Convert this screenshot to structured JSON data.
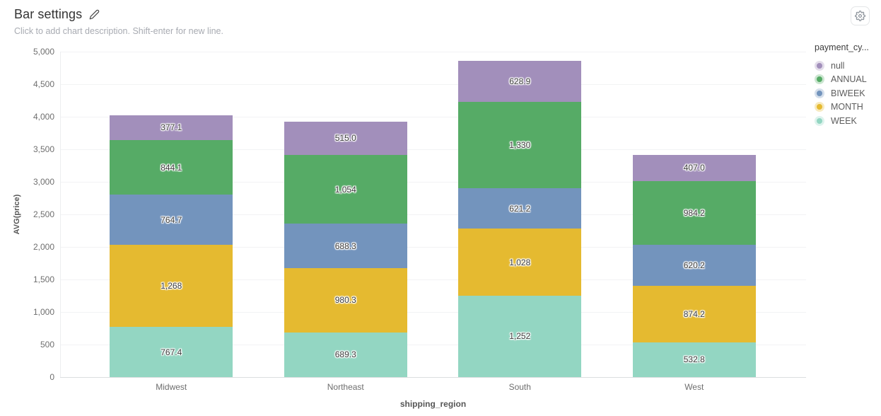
{
  "header": {
    "title": "Bar settings",
    "description": "Click to add chart description. Shift-enter for new line."
  },
  "icons": {
    "edit": "pencil-icon",
    "settings": "gear-icon"
  },
  "chart_data": {
    "type": "bar",
    "stacked": true,
    "xlabel": "shipping_region",
    "ylabel": "AVG(price)",
    "categories": [
      "Midwest",
      "Northeast",
      "South",
      "West"
    ],
    "series": [
      {
        "name": "WEEK",
        "color": "#93d6c2",
        "values": [
          767.4,
          689.3,
          1252,
          532.8
        ],
        "labels": [
          "767.4",
          "689.3",
          "1,252",
          "532.8"
        ]
      },
      {
        "name": "MONTH",
        "color": "#e5ba30",
        "values": [
          1268,
          980.3,
          1028,
          874.2
        ],
        "labels": [
          "1,268",
          "980.3",
          "1,028",
          "874.2"
        ]
      },
      {
        "name": "BIWEEK",
        "color": "#7394bd",
        "values": [
          764.7,
          688.3,
          621.2,
          620.2
        ],
        "labels": [
          "764.7",
          "688.3",
          "621.2",
          "620.2"
        ]
      },
      {
        "name": "ANNUAL",
        "color": "#56ab66",
        "values": [
          844.1,
          1054,
          1330,
          984.2
        ],
        "labels": [
          "844.1",
          "1,054",
          "1,330",
          "984.2"
        ]
      },
      {
        "name": "null",
        "color": "#a28fbb",
        "values": [
          377.1,
          515.0,
          628.9,
          407.0
        ],
        "labels": [
          "377.1",
          "515.0",
          "628.9",
          "407.0"
        ]
      }
    ],
    "ylim": [
      0,
      5000
    ],
    "ytick_step": 500,
    "ytick_labels": [
      "0",
      "500",
      "1,000",
      "1,500",
      "2,000",
      "2,500",
      "3,000",
      "3,500",
      "4,000",
      "4,500",
      "5,000"
    ],
    "grid": true,
    "legend": {
      "title": "payment_cy...",
      "position": "right",
      "items": [
        "null",
        "ANNUAL",
        "BIWEEK",
        "MONTH",
        "WEEK"
      ]
    }
  }
}
